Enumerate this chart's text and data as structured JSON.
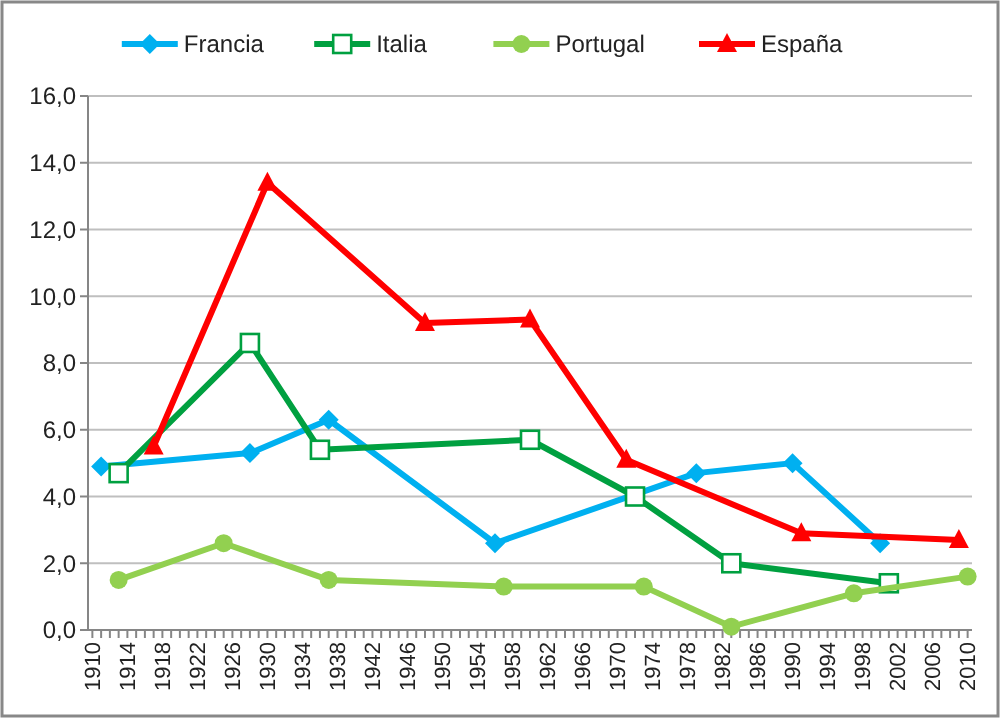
{
  "chart_data": {
    "type": "line",
    "xlim": [
      1909.5,
      2010.5
    ],
    "xticks": [
      1910,
      {
        "value": 1911,
        "label": null
      },
      {
        "value": 1912,
        "label": null
      },
      {
        "value": 1913,
        "label": null
      },
      1914,
      {
        "value": 1915,
        "label": null
      },
      {
        "value": 1916,
        "label": null
      },
      {
        "value": 1917,
        "label": null
      },
      1918,
      {
        "value": 1919,
        "label": null
      },
      {
        "value": 1920,
        "label": null
      },
      {
        "value": 1921,
        "label": null
      },
      1922,
      {
        "value": 1923,
        "label": null
      },
      {
        "value": 1924,
        "label": null
      },
      {
        "value": 1925,
        "label": null
      },
      1926,
      {
        "value": 1927,
        "label": null
      },
      {
        "value": 1928,
        "label": null
      },
      {
        "value": 1929,
        "label": null
      },
      1930,
      {
        "value": 1931,
        "label": null
      },
      {
        "value": 1932,
        "label": null
      },
      {
        "value": 1933,
        "label": null
      },
      1934,
      {
        "value": 1935,
        "label": null
      },
      {
        "value": 1936,
        "label": null
      },
      {
        "value": 1937,
        "label": null
      },
      1938,
      {
        "value": 1939,
        "label": null
      },
      {
        "value": 1940,
        "label": null
      },
      {
        "value": 1941,
        "label": null
      },
      1942,
      {
        "value": 1943,
        "label": null
      },
      {
        "value": 1944,
        "label": null
      },
      {
        "value": 1945,
        "label": null
      },
      1946,
      {
        "value": 1947,
        "label": null
      },
      {
        "value": 1948,
        "label": null
      },
      {
        "value": 1949,
        "label": null
      },
      1950,
      {
        "value": 1951,
        "label": null
      },
      {
        "value": 1952,
        "label": null
      },
      {
        "value": 1953,
        "label": null
      },
      1954,
      {
        "value": 1955,
        "label": null
      },
      {
        "value": 1956,
        "label": null
      },
      {
        "value": 1957,
        "label": null
      },
      1958,
      {
        "value": 1959,
        "label": null
      },
      {
        "value": 1960,
        "label": null
      },
      {
        "value": 1961,
        "label": null
      },
      1962,
      {
        "value": 1963,
        "label": null
      },
      {
        "value": 1964,
        "label": null
      },
      {
        "value": 1965,
        "label": null
      },
      1966,
      {
        "value": 1967,
        "label": null
      },
      {
        "value": 1968,
        "label": null
      },
      {
        "value": 1969,
        "label": null
      },
      1970,
      {
        "value": 1971,
        "label": null
      },
      {
        "value": 1972,
        "label": null
      },
      {
        "value": 1973,
        "label": null
      },
      1974,
      {
        "value": 1975,
        "label": null
      },
      {
        "value": 1976,
        "label": null
      },
      {
        "value": 1977,
        "label": null
      },
      1978,
      {
        "value": 1979,
        "label": null
      },
      {
        "value": 1980,
        "label": null
      },
      {
        "value": 1981,
        "label": null
      },
      1982,
      {
        "value": 1983,
        "label": null
      },
      {
        "value": 1984,
        "label": null
      },
      {
        "value": 1985,
        "label": null
      },
      1986,
      {
        "value": 1987,
        "label": null
      },
      {
        "value": 1988,
        "label": null
      },
      {
        "value": 1989,
        "label": null
      },
      1990,
      {
        "value": 1991,
        "label": null
      },
      {
        "value": 1992,
        "label": null
      },
      {
        "value": 1993,
        "label": null
      },
      1994,
      {
        "value": 1995,
        "label": null
      },
      {
        "value": 1996,
        "label": null
      },
      {
        "value": 1997,
        "label": null
      },
      1998,
      {
        "value": 1999,
        "label": null
      },
      {
        "value": 2000,
        "label": null
      },
      {
        "value": 2001,
        "label": null
      },
      2002,
      {
        "value": 2003,
        "label": null
      },
      {
        "value": 2004,
        "label": null
      },
      {
        "value": 2005,
        "label": null
      },
      2006,
      {
        "value": 2007,
        "label": null
      },
      {
        "value": 2008,
        "label": null
      },
      {
        "value": 2009,
        "label": null
      },
      2010
    ],
    "ylim": [
      0,
      16
    ],
    "yticks": [
      {
        "value": 0,
        "label": "0,0"
      },
      {
        "value": 2,
        "label": "2,0"
      },
      {
        "value": 4,
        "label": "4,0"
      },
      {
        "value": 6,
        "label": "6,0"
      },
      {
        "value": 8,
        "label": "8,0"
      },
      {
        "value": 10,
        "label": "10,0"
      },
      {
        "value": 12,
        "label": "12,0"
      },
      {
        "value": 14,
        "label": "14,0"
      },
      {
        "value": 16,
        "label": "16,0"
      }
    ],
    "grid": "y",
    "legend": "top",
    "line_style": "solid",
    "series": [
      {
        "name": "Francia",
        "color": "#00b0f0",
        "marker": "diamond",
        "x": [
          1911,
          1928,
          1937,
          1956,
          1979,
          1990,
          2000
        ],
        "values": [
          4.9,
          5.3,
          6.3,
          2.6,
          4.7,
          5.0,
          2.6
        ]
      },
      {
        "name": "Italia",
        "color": "#00a040",
        "marker": "square",
        "x": [
          1913,
          1928,
          1936,
          1960,
          1972,
          1983,
          2001
        ],
        "values": [
          4.7,
          8.6,
          5.4,
          5.7,
          4.0,
          2.0,
          1.4
        ]
      },
      {
        "name": "Portugal",
        "color": "#92d050",
        "marker": "circle",
        "x": [
          1913,
          1925,
          1937,
          1957,
          1973,
          1983,
          1997,
          2010
        ],
        "values": [
          1.5,
          2.6,
          1.5,
          1.3,
          1.3,
          0.1,
          1.1,
          1.6
        ]
      },
      {
        "name": "España",
        "color": "#ff0000",
        "marker": "triangle",
        "x": [
          1917,
          1930,
          1948,
          1960,
          1971,
          1991,
          2009
        ],
        "values": [
          5.5,
          13.4,
          9.2,
          9.3,
          5.1,
          2.9,
          2.7
        ]
      }
    ]
  }
}
